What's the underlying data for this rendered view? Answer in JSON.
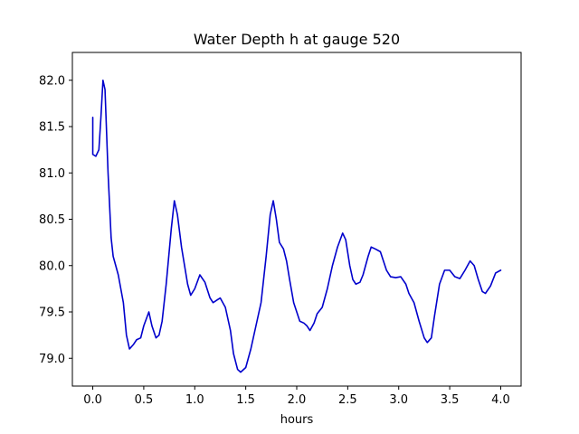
{
  "chart_data": {
    "type": "line",
    "title": "Water Depth h at gauge 520",
    "xlabel": "hours",
    "ylabel": "",
    "xlim": [
      -0.2,
      4.2
    ],
    "ylim": [
      78.7,
      82.3
    ],
    "xticks": [
      {
        "value": 0.0,
        "label": "0.0"
      },
      {
        "value": 0.5,
        "label": "0.5"
      },
      {
        "value": 1.0,
        "label": "1.0"
      },
      {
        "value": 1.5,
        "label": "1.5"
      },
      {
        "value": 2.0,
        "label": "2.0"
      },
      {
        "value": 2.5,
        "label": "2.5"
      },
      {
        "value": 3.0,
        "label": "3.0"
      },
      {
        "value": 3.5,
        "label": "3.5"
      },
      {
        "value": 4.0,
        "label": "4.0"
      }
    ],
    "yticks": [
      {
        "value": 79.0,
        "label": "79.0"
      },
      {
        "value": 79.5,
        "label": "79.5"
      },
      {
        "value": 80.0,
        "label": "80.0"
      },
      {
        "value": 80.5,
        "label": "80.5"
      },
      {
        "value": 81.0,
        "label": "81.0"
      },
      {
        "value": 81.5,
        "label": "81.5"
      },
      {
        "value": 82.0,
        "label": "82.0"
      }
    ],
    "grid": false,
    "series": [
      {
        "color": "#0000cc",
        "points": [
          [
            0.0,
            81.6
          ],
          [
            0.0,
            81.2
          ],
          [
            0.03,
            81.18
          ],
          [
            0.06,
            81.25
          ],
          [
            0.08,
            81.6
          ],
          [
            0.1,
            82.0
          ],
          [
            0.12,
            81.9
          ],
          [
            0.15,
            81.0
          ],
          [
            0.18,
            80.3
          ],
          [
            0.2,
            80.1
          ],
          [
            0.25,
            79.9
          ],
          [
            0.3,
            79.6
          ],
          [
            0.33,
            79.25
          ],
          [
            0.36,
            79.1
          ],
          [
            0.4,
            79.15
          ],
          [
            0.43,
            79.2
          ],
          [
            0.47,
            79.22
          ],
          [
            0.5,
            79.35
          ],
          [
            0.55,
            79.5
          ],
          [
            0.58,
            79.35
          ],
          [
            0.62,
            79.22
          ],
          [
            0.65,
            79.25
          ],
          [
            0.68,
            79.4
          ],
          [
            0.72,
            79.8
          ],
          [
            0.77,
            80.4
          ],
          [
            0.8,
            80.7
          ],
          [
            0.83,
            80.55
          ],
          [
            0.87,
            80.2
          ],
          [
            0.9,
            80.0
          ],
          [
            0.93,
            79.8
          ],
          [
            0.96,
            79.68
          ],
          [
            1.0,
            79.75
          ],
          [
            1.05,
            79.9
          ],
          [
            1.1,
            79.82
          ],
          [
            1.15,
            79.65
          ],
          [
            1.18,
            79.6
          ],
          [
            1.22,
            79.63
          ],
          [
            1.25,
            79.65
          ],
          [
            1.3,
            79.55
          ],
          [
            1.35,
            79.3
          ],
          [
            1.38,
            79.05
          ],
          [
            1.42,
            78.88
          ],
          [
            1.45,
            78.85
          ],
          [
            1.5,
            78.9
          ],
          [
            1.55,
            79.1
          ],
          [
            1.6,
            79.35
          ],
          [
            1.65,
            79.6
          ],
          [
            1.7,
            80.1
          ],
          [
            1.74,
            80.55
          ],
          [
            1.77,
            80.7
          ],
          [
            1.8,
            80.5
          ],
          [
            1.83,
            80.25
          ],
          [
            1.87,
            80.18
          ],
          [
            1.9,
            80.05
          ],
          [
            1.93,
            79.85
          ],
          [
            1.97,
            79.6
          ],
          [
            2.0,
            79.5
          ],
          [
            2.03,
            79.4
          ],
          [
            2.07,
            79.38
          ],
          [
            2.1,
            79.35
          ],
          [
            2.13,
            79.3
          ],
          [
            2.17,
            79.38
          ],
          [
            2.2,
            79.48
          ],
          [
            2.25,
            79.55
          ],
          [
            2.3,
            79.75
          ],
          [
            2.35,
            80.0
          ],
          [
            2.4,
            80.2
          ],
          [
            2.45,
            80.35
          ],
          [
            2.48,
            80.28
          ],
          [
            2.52,
            80.0
          ],
          [
            2.55,
            79.85
          ],
          [
            2.58,
            79.8
          ],
          [
            2.62,
            79.82
          ],
          [
            2.65,
            79.9
          ],
          [
            2.7,
            80.1
          ],
          [
            2.73,
            80.2
          ],
          [
            2.77,
            80.18
          ],
          [
            2.82,
            80.15
          ],
          [
            2.85,
            80.05
          ],
          [
            2.88,
            79.95
          ],
          [
            2.92,
            79.88
          ],
          [
            2.97,
            79.87
          ],
          [
            3.02,
            79.88
          ],
          [
            3.07,
            79.8
          ],
          [
            3.1,
            79.7
          ],
          [
            3.15,
            79.6
          ],
          [
            3.2,
            79.4
          ],
          [
            3.25,
            79.22
          ],
          [
            3.28,
            79.17
          ],
          [
            3.32,
            79.22
          ],
          [
            3.35,
            79.45
          ],
          [
            3.4,
            79.8
          ],
          [
            3.45,
            79.95
          ],
          [
            3.5,
            79.95
          ],
          [
            3.55,
            79.88
          ],
          [
            3.6,
            79.86
          ],
          [
            3.65,
            79.95
          ],
          [
            3.7,
            80.05
          ],
          [
            3.74,
            80.0
          ],
          [
            3.78,
            79.85
          ],
          [
            3.82,
            79.72
          ],
          [
            3.85,
            79.7
          ],
          [
            3.9,
            79.78
          ],
          [
            3.95,
            79.92
          ],
          [
            4.0,
            79.95
          ]
        ]
      }
    ]
  }
}
